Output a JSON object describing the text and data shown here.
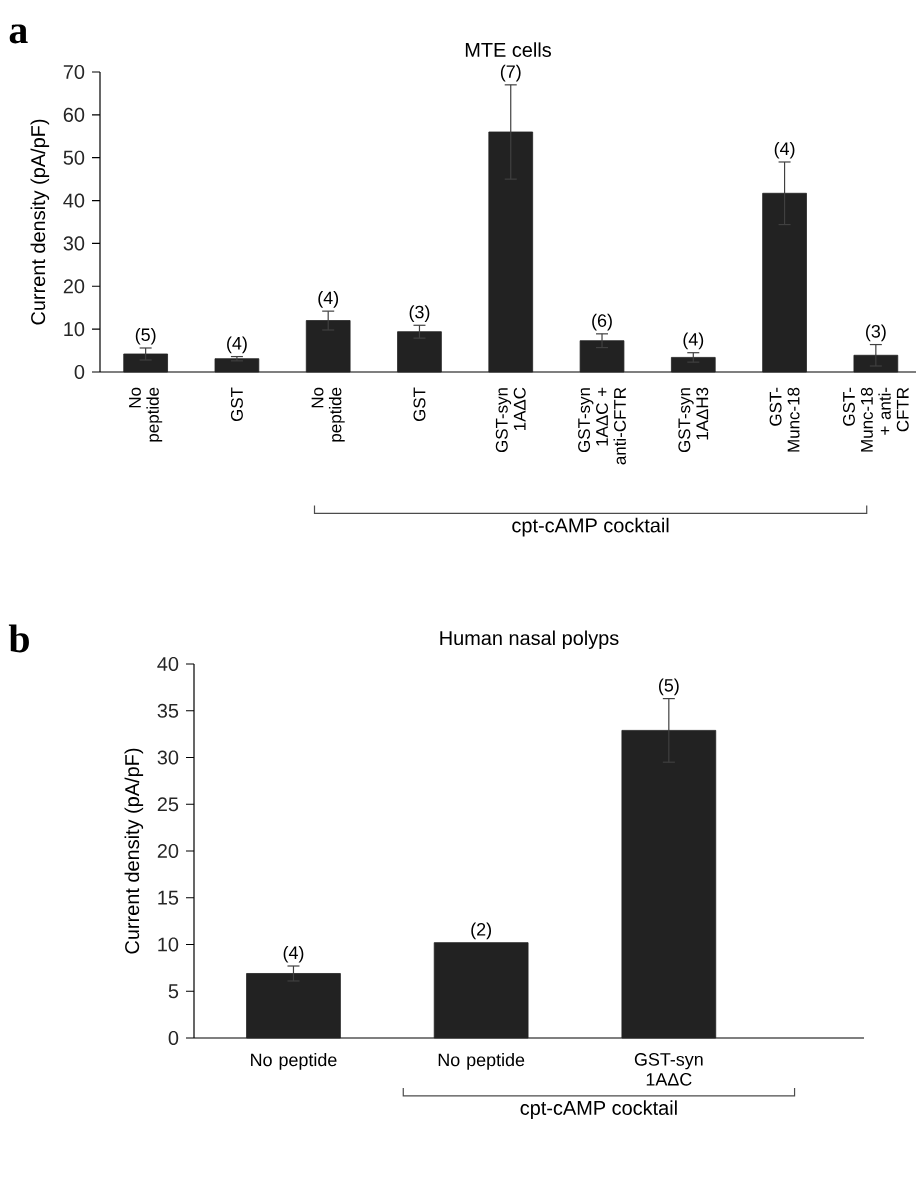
{
  "chart_data": [
    {
      "type": "bar",
      "title": "MTE cells",
      "ylabel": "Current density (pA/pF)",
      "categories": [
        "No peptide",
        "GST",
        "No peptide",
        "GST",
        "GST-syn 1AΔC",
        "GST-syn 1AΔC + anti-CFTR",
        "GST-syn 1AΔH3",
        "GST-Munc-18",
        "GST-Munc-18 + anti-CFTR"
      ],
      "values": [
        4.2,
        3.1,
        12.0,
        9.4,
        56,
        7.3,
        3.4,
        41.7,
        3.9
      ],
      "errors": [
        1.4,
        0.5,
        2.2,
        1.5,
        11,
        1.6,
        1.1,
        7.3,
        2.5
      ],
      "color": "#222222",
      "ylim": [
        0,
        70
      ],
      "yticks": [
        0,
        10,
        20,
        30,
        40,
        50,
        60,
        70
      ],
      "annotations": [
        "a",
        "(5)",
        "(4)",
        "(4)",
        "(3)",
        "(7)",
        "(6)",
        "(4)",
        "(4)",
        "(3)",
        "cpt-cAMP cocktail"
      ]
    },
    {
      "type": "bar",
      "title": "Human nasal polyps",
      "ylabel": "Current density (pA/pF)",
      "categories": [
        "No peptide",
        "No peptide",
        "GST-syn 1AΔC"
      ],
      "values": [
        6.9,
        10.2,
        32.9
      ],
      "errors": [
        0.8,
        null,
        3.4
      ],
      "color": "#222222",
      "ylim": [
        0,
        40
      ],
      "yticks": [
        0,
        5,
        10,
        15,
        20,
        25,
        30,
        35,
        40
      ],
      "annotations": [
        "b",
        "(4)",
        "(2)",
        "(5)",
        "cpt-cAMP cocktail"
      ]
    }
  ]
}
